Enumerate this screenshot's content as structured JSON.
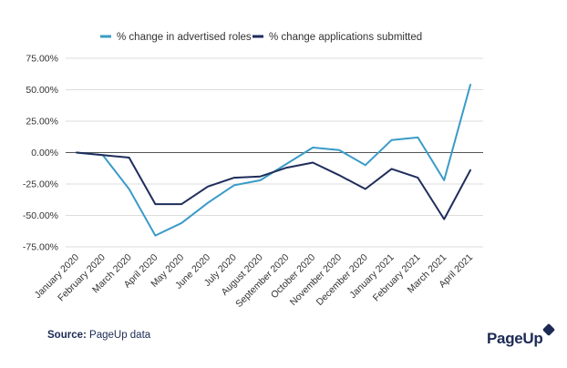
{
  "chart_data": {
    "type": "line",
    "categories": [
      "January 2020",
      "February 2020",
      "March 2020",
      "April 2020",
      "May 2020",
      "June 2020",
      "July 2020",
      "August 2020",
      "September 2020",
      "October 2020",
      "November 2020",
      "December 2020",
      "January 2021",
      "February 2021",
      "March 2021",
      "April 2021"
    ],
    "series": [
      {
        "name": "% change in advertised roles",
        "color": "#3a9bc8",
        "values": [
          0,
          -2,
          -29,
          -66,
          -56,
          -40,
          -26,
          -22,
          -9,
          4,
          2,
          -10,
          10,
          12,
          -22,
          54
        ]
      },
      {
        "name": "% change applications submitted",
        "color": "#1f2d5c",
        "values": [
          0,
          -2,
          -4,
          -41,
          -41,
          -27,
          -20,
          -19,
          -12,
          -8,
          -18,
          -29,
          -13,
          -20,
          -53,
          -14
        ]
      }
    ],
    "yticks": [
      "75.00%",
      "50.00%",
      "25.00%",
      "0.00%",
      "-25.00%",
      "-50.00%",
      "-75.00%"
    ],
    "ylim": [
      -75,
      75
    ],
    "grid": true,
    "legend": "top-center"
  },
  "source": {
    "label": "Source:",
    "text": "PageUp data"
  },
  "logo": {
    "text": "PageUp"
  }
}
